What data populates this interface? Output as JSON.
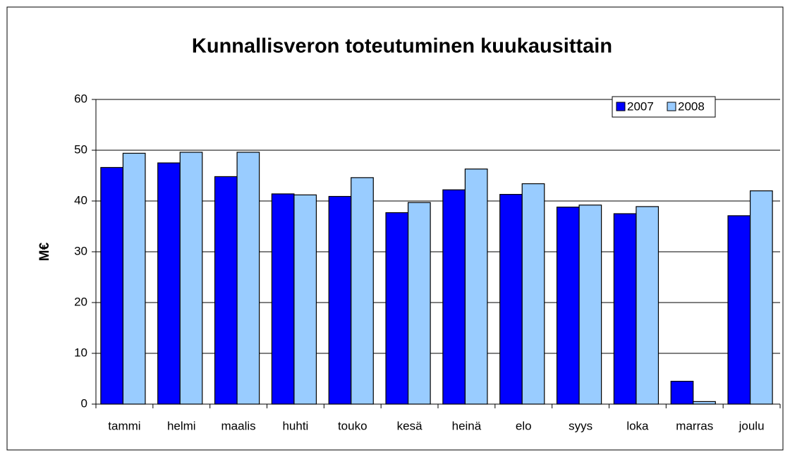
{
  "chart_data": {
    "type": "bar",
    "title": "Kunnallisveron toteutuminen kuukausittain",
    "y_label": "M€",
    "categories": [
      "tammi",
      "helmi",
      "maalis",
      "huhti",
      "touko",
      "kesä",
      "heinä",
      "elo",
      "syys",
      "loka",
      "marras",
      "joulu"
    ],
    "series": [
      {
        "name": "2007",
        "color": "#0000ff",
        "values": [
          46.6,
          47.5,
          44.8,
          41.4,
          40.9,
          37.7,
          42.2,
          41.3,
          38.8,
          37.5,
          4.5,
          37.1
        ]
      },
      {
        "name": "2008",
        "color": "#99ccff",
        "values": [
          49.4,
          49.6,
          49.6,
          41.2,
          44.6,
          39.7,
          46.3,
          43.4,
          39.2,
          38.9,
          0.5,
          42.0
        ]
      }
    ],
    "ylim": [
      0,
      60
    ],
    "yticks": [
      0,
      10,
      20,
      30,
      40,
      50,
      60
    ],
    "grid": true,
    "legend": "top-right"
  }
}
